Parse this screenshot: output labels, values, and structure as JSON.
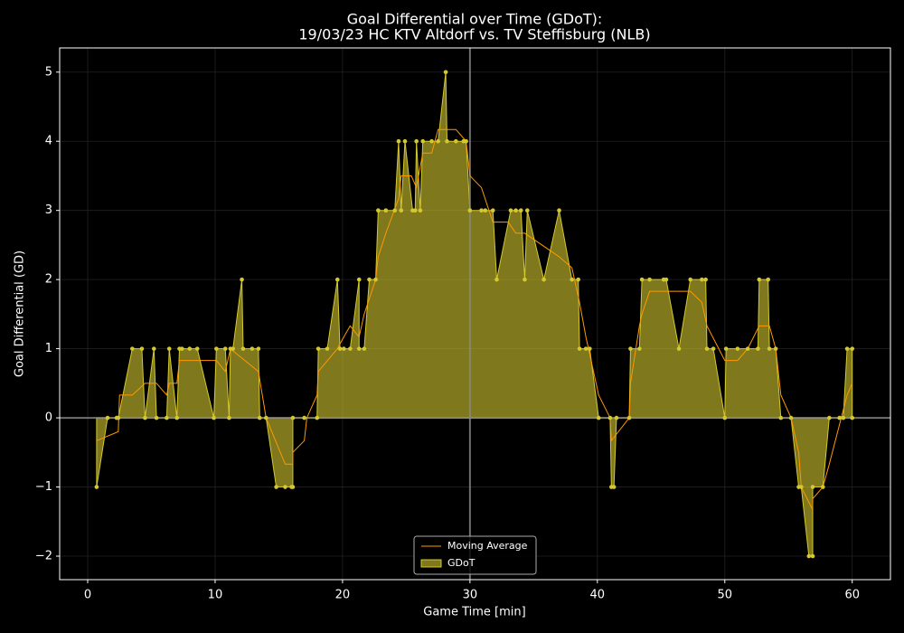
{
  "chart_data": {
    "type": "area",
    "title": "Goal Differential over Time (GDoT):",
    "subtitle": "19/03/23 HC KTV Altdorf  vs.  TV Steffisburg (NLB)",
    "x_label": "Game Time [min]",
    "y_label": "Goal Differential (GD)",
    "xlim": [
      -2.2,
      63.0
    ],
    "ylim": [
      -2.34,
      5.35
    ],
    "xticks": [
      0,
      10,
      20,
      30,
      40,
      50,
      60
    ],
    "yticks": [
      {
        "value": -2,
        "label": "−2"
      },
      {
        "value": -1,
        "label": "−1"
      },
      0,
      1,
      2,
      3,
      4,
      5
    ],
    "grid": true,
    "vline": 30,
    "hline": 0,
    "legend": "lower center",
    "series": [
      {
        "name": "GDoT",
        "color": "#d4c830",
        "x": [
          0.7,
          1.56,
          2.27,
          2.4,
          3.5,
          4.25,
          4.5,
          5.2,
          5.4,
          6.2,
          6.4,
          7.0,
          7.2,
          7.4,
          8.0,
          8.6,
          9.9,
          10.1,
          10.8,
          11.1,
          11.2,
          11.4,
          12.1,
          12.2,
          12.9,
          13.4,
          13.5,
          14.0,
          14.8,
          15.5,
          16.0,
          16.1,
          16.1,
          17.0,
          18.0,
          18.1,
          18.8,
          19.6,
          19.8,
          20.1,
          20.6,
          21.3,
          21.3,
          21.7,
          22.1,
          22.6,
          22.8,
          23.4,
          24.1,
          24.4,
          24.6,
          24.9,
          25.5,
          25.7,
          25.8,
          26.1,
          26.3,
          27.0,
          27.5,
          28.1,
          28.2,
          28.9,
          29.5,
          29.7,
          30.0,
          30.9,
          31.2,
          31.8,
          32.1,
          33.2,
          33.6,
          34.0,
          34.3,
          34.5,
          35.8,
          37.0,
          38.0,
          38.5,
          38.6,
          39.1,
          39.4,
          40.1,
          41.0,
          41.1,
          41.3,
          41.5,
          42.5,
          42.6,
          43.3,
          43.5,
          44.1,
          45.2,
          45.4,
          46.4,
          47.3,
          48.2,
          48.5,
          48.6,
          49.1,
          50.0,
          50.1,
          51.0,
          51.8,
          52.6,
          52.7,
          53.4,
          53.5,
          54.0,
          54.4,
          55.2,
          55.8,
          56.0,
          56.6,
          56.9,
          56.9,
          57.7,
          58.2,
          59.0,
          59.3,
          59.6,
          60.0,
          60.0
        ],
        "values": [
          -1,
          0,
          0,
          0,
          1,
          1,
          0,
          1,
          0,
          0,
          1,
          0,
          1,
          1,
          1,
          1,
          0,
          1,
          1,
          0,
          1,
          1,
          2,
          1,
          1,
          1,
          0,
          0,
          -1,
          -1,
          -1,
          -1,
          0,
          0,
          0,
          1,
          1,
          2,
          1,
          1,
          1,
          2,
          1,
          1,
          2,
          2,
          3,
          3,
          3,
          4,
          3,
          4,
          3,
          3,
          4,
          3,
          4,
          4,
          4,
          5,
          4,
          4,
          4,
          4,
          3,
          3,
          3,
          3,
          2,
          3,
          3,
          3,
          2,
          3,
          2,
          3,
          2,
          2,
          1,
          1,
          1,
          0,
          0,
          -1,
          -1,
          0,
          0,
          1,
          1,
          2,
          2,
          2,
          2,
          1,
          2,
          2,
          2,
          1,
          1,
          0,
          1,
          1,
          1,
          1,
          2,
          2,
          1,
          1,
          0,
          0,
          -1,
          -1,
          -2,
          -2,
          -1,
          -1,
          0,
          0,
          0,
          1,
          1,
          0
        ]
      },
      {
        "name": "Moving Average",
        "color": "#ff9900",
        "x": [
          0.7,
          2.4,
          2.5,
          3.5,
          4.5,
          5.4,
          6.2,
          6.4,
          7.0,
          7.2,
          10.1,
          10.8,
          11.2,
          13.4,
          14.0,
          15.5,
          16.1,
          16.1,
          17.0,
          17.2,
          18.0,
          18.1,
          19.6,
          20.1,
          20.6,
          21.3,
          21.7,
          22.6,
          22.8,
          23.4,
          24.4,
          24.6,
          25.4,
          25.8,
          26.3,
          27.0,
          27.5,
          28.9,
          29.7,
          30.0,
          30.9,
          31.8,
          33.0,
          33.6,
          34.3,
          37.0,
          38.0,
          38.6,
          39.1,
          40.1,
          41.0,
          41.1,
          42.5,
          42.6,
          43.3,
          43.5,
          44.1,
          47.3,
          48.2,
          48.6,
          50.0,
          51.0,
          51.8,
          52.7,
          53.5,
          54.0,
          54.4,
          55.2,
          55.8,
          56.0,
          56.9,
          56.9,
          57.7,
          58.2,
          59.6,
          60.0
        ],
        "values": [
          -0.33,
          -0.2,
          0.33,
          0.33,
          0.5,
          0.5,
          0.33,
          0.5,
          0.5,
          0.83,
          0.83,
          0.67,
          1,
          0.67,
          0,
          -0.67,
          -0.67,
          -0.5,
          -0.33,
          0,
          0.33,
          0.67,
          1,
          1.17,
          1.33,
          1.17,
          1.5,
          2,
          2.33,
          2.67,
          3.17,
          3.5,
          3.5,
          3.33,
          3.83,
          3.83,
          4.17,
          4.17,
          4,
          3.5,
          3.33,
          2.83,
          2.83,
          2.67,
          2.67,
          2.33,
          2.17,
          1.67,
          1.17,
          0.33,
          0,
          -0.33,
          0,
          0.5,
          1.33,
          1.5,
          1.83,
          1.83,
          1.67,
          1.33,
          0.83,
          0.83,
          1,
          1.33,
          1.33,
          1,
          0.33,
          0,
          -0.5,
          -1,
          -1.33,
          -1.17,
          -1,
          -0.67,
          0.33,
          0.5
        ]
      }
    ]
  }
}
